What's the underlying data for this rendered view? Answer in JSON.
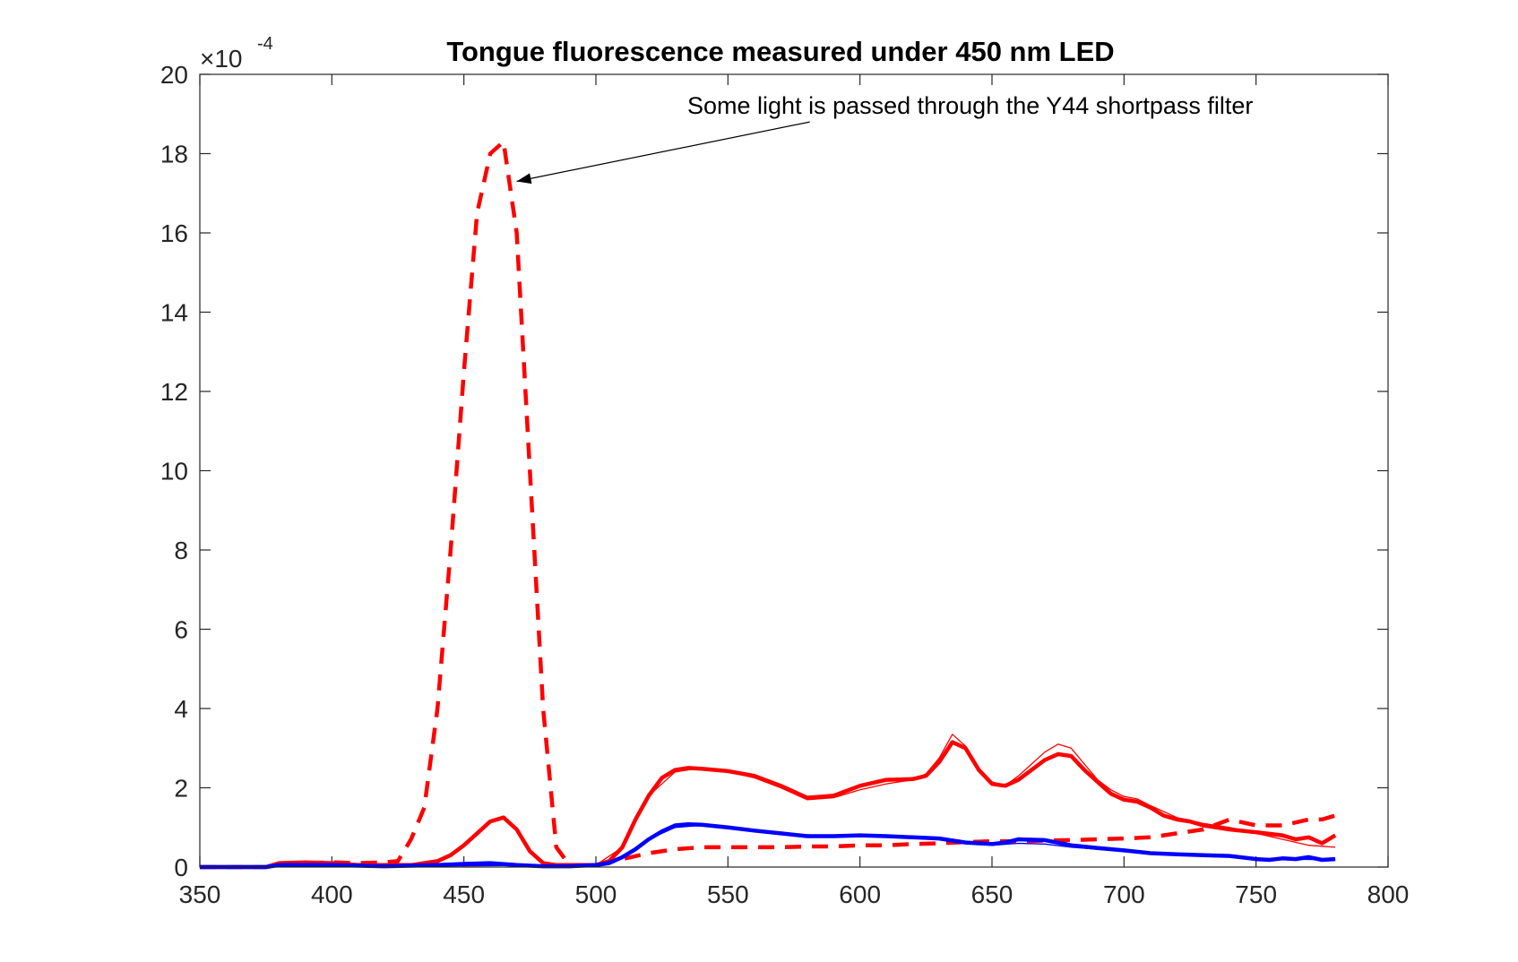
{
  "chart_data": {
    "type": "line",
    "title": "Tongue fluorescence measured under 450 nm LED",
    "xlabel": "",
    "ylabel": "",
    "xlim": [
      350,
      800
    ],
    "ylim": [
      0,
      20
    ],
    "x_ticks": [
      "350",
      "400",
      "450",
      "500",
      "550",
      "600",
      "650",
      "700",
      "750",
      "800"
    ],
    "y_ticks": [
      "0",
      "2",
      "4",
      "6",
      "8",
      "10",
      "12",
      "14",
      "16",
      "18",
      "20"
    ],
    "y_exponent": {
      "base": "×10",
      "power": "-4"
    },
    "grid": false,
    "box": true,
    "annotation": {
      "text": "Some light is passed through the Y44 shortpass filter",
      "arrow_from": [
        581,
        18.8
      ],
      "arrow_to": [
        470,
        17.3
      ]
    },
    "series": [
      {
        "style": "dashed",
        "color": "#ff0000",
        "width": "thick",
        "x": [
          350,
          375,
          380,
          390,
          400,
          410,
          420,
          425,
          430,
          435,
          440,
          445,
          450,
          455,
          460,
          465,
          470,
          475,
          480,
          485,
          490,
          500,
          510,
          520,
          530,
          540,
          550,
          560,
          570,
          580,
          590,
          600,
          610,
          620,
          630,
          640,
          650,
          660,
          670,
          680,
          690,
          700,
          710,
          720,
          730,
          740,
          750,
          760,
          770,
          775,
          780
        ],
        "y": [
          0,
          0,
          0.05,
          0.1,
          0.12,
          0.1,
          0.12,
          0.15,
          0.7,
          1.5,
          4.0,
          8.0,
          12.5,
          16.5,
          18.0,
          18.3,
          16.0,
          10.0,
          4.0,
          0.5,
          0.05,
          0.05,
          0.2,
          0.35,
          0.45,
          0.5,
          0.5,
          0.5,
          0.5,
          0.52,
          0.52,
          0.55,
          0.55,
          0.58,
          0.6,
          0.63,
          0.65,
          0.65,
          0.67,
          0.68,
          0.7,
          0.72,
          0.75,
          0.85,
          0.95,
          1.2,
          1.05,
          1.05,
          1.2,
          1.2,
          1.3
        ]
      },
      {
        "style": "solid",
        "color": "#ff0000",
        "width": "thick",
        "x": [
          350,
          375,
          380,
          390,
          400,
          410,
          420,
          430,
          440,
          445,
          450,
          455,
          460,
          465,
          470,
          475,
          480,
          485,
          490,
          500,
          505,
          510,
          515,
          520,
          525,
          530,
          535,
          540,
          550,
          560,
          570,
          580,
          590,
          600,
          610,
          620,
          625,
          630,
          635,
          640,
          645,
          650,
          655,
          660,
          665,
          670,
          675,
          680,
          685,
          690,
          695,
          700,
          705,
          710,
          715,
          720,
          725,
          730,
          740,
          750,
          760,
          765,
          770,
          775,
          780
        ],
        "y": [
          0,
          0,
          0.1,
          0.12,
          0.1,
          0.05,
          0.05,
          0.05,
          0.15,
          0.3,
          0.55,
          0.85,
          1.15,
          1.25,
          0.95,
          0.4,
          0.1,
          0.05,
          0.05,
          0.05,
          0.15,
          0.5,
          1.2,
          1.8,
          2.25,
          2.45,
          2.5,
          2.48,
          2.42,
          2.3,
          2.05,
          1.75,
          1.8,
          2.05,
          2.2,
          2.22,
          2.3,
          2.65,
          3.15,
          3.0,
          2.45,
          2.1,
          2.05,
          2.2,
          2.45,
          2.7,
          2.85,
          2.8,
          2.45,
          2.15,
          1.85,
          1.7,
          1.65,
          1.5,
          1.3,
          1.2,
          1.15,
          1.05,
          0.95,
          0.88,
          0.8,
          0.7,
          0.75,
          0.6,
          0.8
        ]
      },
      {
        "style": "solid",
        "color": "#ff0000",
        "width": "thin",
        "x": [
          350,
          500,
          510,
          520,
          530,
          540,
          550,
          560,
          570,
          580,
          590,
          600,
          610,
          620,
          625,
          630,
          635,
          640,
          645,
          650,
          655,
          660,
          665,
          670,
          675,
          680,
          685,
          690,
          695,
          700,
          705,
          710,
          720,
          730,
          740,
          750,
          760,
          770,
          780
        ],
        "y": [
          0,
          0.05,
          0.5,
          1.8,
          2.4,
          2.5,
          2.4,
          2.25,
          2.0,
          1.7,
          1.75,
          1.95,
          2.1,
          2.2,
          2.35,
          2.75,
          3.35,
          3.05,
          2.5,
          2.15,
          2.05,
          2.3,
          2.6,
          2.9,
          3.1,
          3.0,
          2.6,
          2.2,
          1.95,
          1.78,
          1.72,
          1.55,
          1.25,
          1.1,
          1.0,
          0.85,
          0.7,
          0.55,
          0.5
        ]
      },
      {
        "style": "solid",
        "color": "#0000ff",
        "width": "thick",
        "x": [
          350,
          375,
          380,
          400,
          420,
          440,
          450,
          460,
          470,
          480,
          490,
          500,
          505,
          510,
          515,
          520,
          525,
          530,
          535,
          540,
          550,
          560,
          570,
          580,
          590,
          600,
          610,
          620,
          630,
          640,
          645,
          650,
          655,
          660,
          670,
          680,
          690,
          700,
          710,
          720,
          730,
          740,
          750,
          755,
          760,
          765,
          770,
          775,
          780
        ],
        "y": [
          0,
          0,
          0.05,
          0.05,
          0.02,
          0.05,
          0.08,
          0.1,
          0.05,
          0.02,
          0.02,
          0.05,
          0.1,
          0.25,
          0.45,
          0.7,
          0.9,
          1.05,
          1.08,
          1.07,
          1.0,
          0.92,
          0.85,
          0.78,
          0.78,
          0.8,
          0.78,
          0.75,
          0.72,
          0.62,
          0.6,
          0.58,
          0.62,
          0.7,
          0.68,
          0.55,
          0.48,
          0.42,
          0.35,
          0.32,
          0.3,
          0.28,
          0.2,
          0.18,
          0.22,
          0.2,
          0.25,
          0.18,
          0.2
        ]
      },
      {
        "style": "solid",
        "color": "#0000ff",
        "width": "thin",
        "x": [
          350,
          500,
          510,
          520,
          530,
          540,
          550,
          570,
          590,
          610,
          630,
          640,
          650,
          660,
          670,
          680,
          700,
          720,
          740,
          760,
          780
        ],
        "y": [
          0,
          0.05,
          0.25,
          0.7,
          1.0,
          1.05,
          1.0,
          0.85,
          0.78,
          0.78,
          0.72,
          0.6,
          0.55,
          0.6,
          0.58,
          0.5,
          0.4,
          0.32,
          0.26,
          0.2,
          0.18
        ]
      }
    ]
  }
}
